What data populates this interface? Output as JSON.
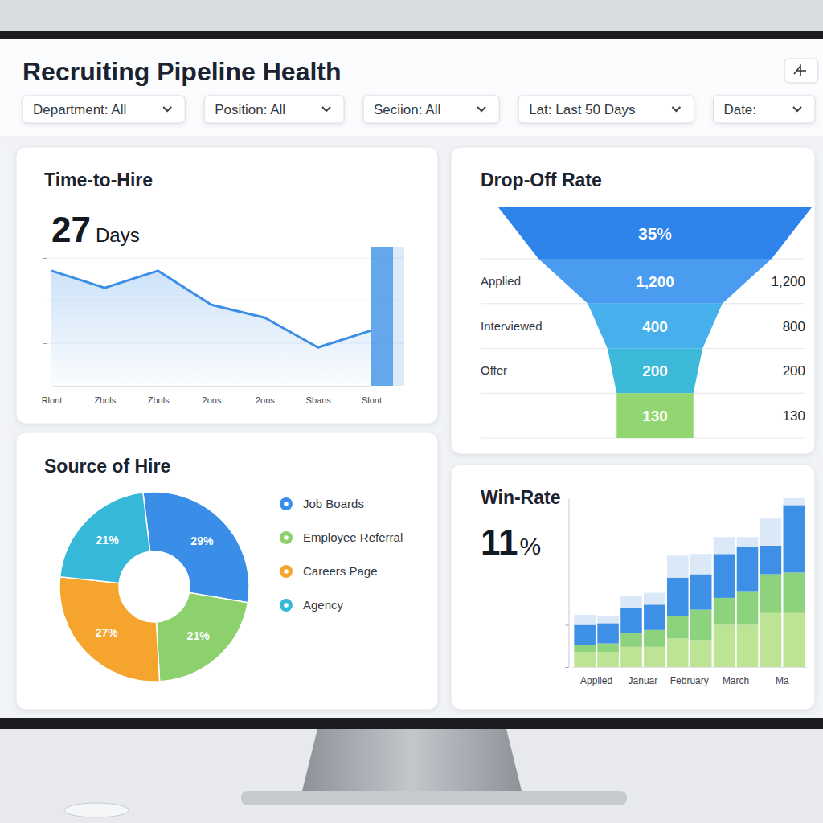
{
  "header": {
    "title": "Recruiting Pipeline Health",
    "filters": [
      "Department: All",
      "Position: All",
      "Seciion: All",
      "Lat: Last 50 Days",
      "Date:"
    ]
  },
  "chart_data": [
    {
      "type": "line",
      "title": "Time-to-Hire",
      "value": 27,
      "unit": "Days",
      "categories": [
        "Rlont",
        "Zbols",
        "Zbols",
        "2ons",
        "2ons",
        "Sbans",
        "Slont"
      ],
      "values": [
        27,
        23,
        27,
        19,
        16,
        9,
        13
      ],
      "color": "#3a8ee6",
      "ylim": [
        0,
        40
      ],
      "yticks": [
        10,
        20,
        30
      ],
      "grid": true,
      "tick_labels": "x"
    },
    {
      "type": "funnel",
      "title": "Drop-Off Rate",
      "value": 35,
      "unit": "%",
      "categories": [
        "Applied",
        "Interviewed",
        "Offer",
        null
      ],
      "values": [
        1200,
        400,
        200,
        130
      ],
      "value_labels": [
        "1,200",
        "400",
        "200",
        "130"
      ],
      "data_labels": true,
      "colors": [
        "#4a9cf0",
        "#45b0ec",
        "#3cb9d9",
        "#92d672"
      ],
      "comparison": [
        1200,
        800,
        200,
        130
      ],
      "comparison_labels": [
        "1,200",
        "800",
        "200",
        "130"
      ]
    },
    {
      "type": "pie",
      "title": "Source of Hire",
      "categories": [
        "Job Boards",
        "Employee Referral",
        "Careers Page",
        "Agency"
      ],
      "values": [
        29,
        21,
        27,
        21
      ],
      "value_labels": [
        "29%",
        "21%",
        "27%",
        "21%"
      ],
      "data_labels": true,
      "colors": [
        "#3b8ee8",
        "#8dd16c",
        "#f5a52e",
        "#36b8d8"
      ],
      "legend": "right"
    },
    {
      "type": "bar",
      "title": "Win-Rate",
      "value": 11,
      "unit": "%",
      "categories": [
        "Applied",
        null,
        "Januar",
        null,
        "February",
        null,
        "March",
        null,
        "Ma",
        null
      ],
      "series": [
        {
          "color": "#bde394",
          "values": [
            9,
            9,
            12,
            12,
            17,
            16,
            25,
            25,
            32,
            32
          ]
        },
        {
          "color": "#8dd27c",
          "values": [
            4,
            5,
            8,
            10,
            13,
            18,
            16,
            20,
            23,
            24
          ]
        },
        {
          "color": "#3e8fe6",
          "values": [
            12,
            12,
            15,
            15,
            23,
            21,
            26,
            26,
            17,
            40
          ]
        },
        {
          "color": "#dbe8f8",
          "values": [
            6,
            4,
            7,
            7,
            13,
            12,
            10,
            6,
            16,
            4
          ]
        }
      ],
      "stacked": true,
      "ylim": [
        0,
        100
      ],
      "yticks": [
        0,
        25,
        50
      ],
      "tick_labels": "x"
    }
  ]
}
